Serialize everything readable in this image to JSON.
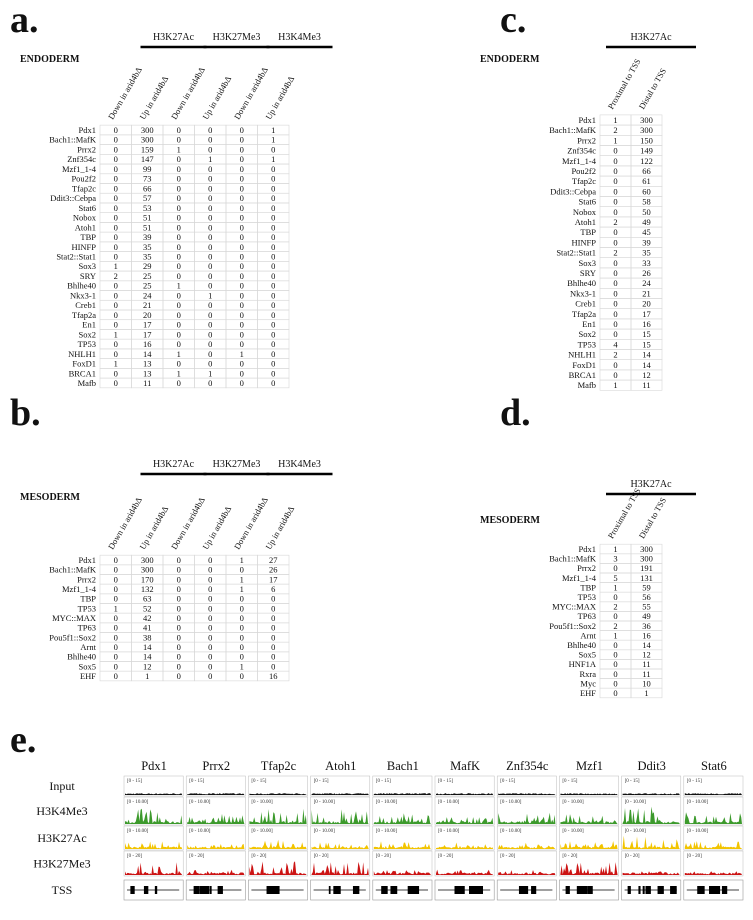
{
  "panels": {
    "a": {
      "label": "a.",
      "section": "ENDODERM",
      "groups": [
        "H3K27Ac",
        "H3K27Me3",
        "H3K4Me3"
      ],
      "columns": [
        "Down in arid4bΔ",
        "Up in arid4bΔ",
        "Down in arid4bΔ",
        "Up in arid4bΔ",
        "Down in arid4bΔ",
        "Up in arid4bΔ"
      ],
      "rows": [
        {
          "name": "Pdx1",
          "cells": [
            0,
            300,
            0,
            0,
            0,
            1
          ]
        },
        {
          "name": "Bach1::MafK",
          "cells": [
            0,
            300,
            0,
            0,
            0,
            1
          ]
        },
        {
          "name": "Prrx2",
          "cells": [
            0,
            159,
            1,
            0,
            0,
            0
          ]
        },
        {
          "name": "Znf354c",
          "cells": [
            0,
            147,
            0,
            1,
            0,
            1
          ]
        },
        {
          "name": "Mzf1_1-4",
          "cells": [
            0,
            99,
            0,
            0,
            0,
            0
          ]
        },
        {
          "name": "Pou2f2",
          "cells": [
            0,
            73,
            0,
            0,
            0,
            0
          ]
        },
        {
          "name": "Tfap2c",
          "cells": [
            0,
            66,
            0,
            0,
            0,
            0
          ]
        },
        {
          "name": "Ddit3::Cebpa",
          "cells": [
            0,
            57,
            0,
            0,
            0,
            0
          ]
        },
        {
          "name": "Stat6",
          "cells": [
            0,
            53,
            0,
            0,
            0,
            0
          ]
        },
        {
          "name": "Nobox",
          "cells": [
            0,
            51,
            0,
            0,
            0,
            0
          ]
        },
        {
          "name": "Atoh1",
          "cells": [
            0,
            51,
            0,
            0,
            0,
            0
          ]
        },
        {
          "name": "TBP",
          "cells": [
            0,
            39,
            0,
            0,
            0,
            0
          ]
        },
        {
          "name": "HINFP",
          "cells": [
            0,
            35,
            0,
            0,
            0,
            0
          ]
        },
        {
          "name": "Stat2::Stat1",
          "cells": [
            0,
            35,
            0,
            0,
            0,
            0
          ]
        },
        {
          "name": "Sox3",
          "cells": [
            1,
            29,
            0,
            0,
            0,
            0
          ]
        },
        {
          "name": "SRY",
          "cells": [
            2,
            25,
            0,
            0,
            0,
            0
          ]
        },
        {
          "name": "Bhlhe40",
          "cells": [
            0,
            25,
            1,
            0,
            0,
            0
          ]
        },
        {
          "name": "Nkx3-1",
          "cells": [
            0,
            24,
            0,
            1,
            0,
            0
          ]
        },
        {
          "name": "Creb1",
          "cells": [
            0,
            21,
            0,
            0,
            0,
            0
          ]
        },
        {
          "name": "Tfap2a",
          "cells": [
            0,
            20,
            0,
            0,
            0,
            0
          ]
        },
        {
          "name": "En1",
          "cells": [
            0,
            17,
            0,
            0,
            0,
            0
          ]
        },
        {
          "name": "Sox2",
          "cells": [
            1,
            17,
            0,
            0,
            0,
            0
          ]
        },
        {
          "name": "TP53",
          "cells": [
            0,
            16,
            0,
            0,
            0,
            0
          ]
        },
        {
          "name": "NHLH1",
          "cells": [
            0,
            14,
            1,
            0,
            1,
            0
          ]
        },
        {
          "name": "FoxD1",
          "cells": [
            1,
            13,
            0,
            0,
            0,
            0
          ]
        },
        {
          "name": "BRCA1",
          "cells": [
            0,
            13,
            1,
            1,
            0,
            0
          ]
        },
        {
          "name": "Mafb",
          "cells": [
            0,
            11,
            0,
            0,
            0,
            0
          ]
        }
      ]
    },
    "b": {
      "label": "b.",
      "section": "MESODERM",
      "groups": [
        "H3K27Ac",
        "H3K27Me3",
        "H3K4Me3"
      ],
      "columns": [
        "Down in arid4bΔ",
        "Up in arid4bΔ",
        "Down in arid4bΔ",
        "Up in arid4bΔ",
        "Down in arid4bΔ",
        "Up in arid4bΔ"
      ],
      "rows": [
        {
          "name": "Pdx1",
          "cells": [
            0,
            300,
            0,
            0,
            1,
            27
          ]
        },
        {
          "name": "Bach1::MafK",
          "cells": [
            0,
            300,
            0,
            0,
            0,
            26
          ]
        },
        {
          "name": "Prrx2",
          "cells": [
            0,
            170,
            0,
            0,
            1,
            17
          ]
        },
        {
          "name": "Mzf1_1-4",
          "cells": [
            0,
            132,
            0,
            0,
            1,
            6
          ]
        },
        {
          "name": "TBP",
          "cells": [
            0,
            63,
            0,
            0,
            0,
            0
          ]
        },
        {
          "name": "TP53",
          "cells": [
            1,
            52,
            0,
            0,
            0,
            0
          ]
        },
        {
          "name": "MYC::MAX",
          "cells": [
            0,
            42,
            0,
            0,
            0,
            0
          ]
        },
        {
          "name": "TP63",
          "cells": [
            0,
            41,
            0,
            0,
            0,
            0
          ]
        },
        {
          "name": "Pou5f1::Sox2",
          "cells": [
            0,
            38,
            0,
            0,
            0,
            0
          ]
        },
        {
          "name": "Arnt",
          "cells": [
            0,
            14,
            0,
            0,
            0,
            0
          ]
        },
        {
          "name": "Bhlhe40",
          "cells": [
            0,
            14,
            0,
            0,
            0,
            0
          ]
        },
        {
          "name": "Sox5",
          "cells": [
            0,
            12,
            0,
            0,
            1,
            0
          ]
        },
        {
          "name": "EHF",
          "cells": [
            0,
            1,
            0,
            0,
            0,
            16
          ]
        }
      ]
    },
    "c": {
      "label": "c.",
      "section": "ENDODERM",
      "groups": [
        "H3K27Ac"
      ],
      "columns": [
        "Proximal to TSS",
        "Distal to TSS"
      ],
      "rows": [
        {
          "name": "Pdx1",
          "cells": [
            1,
            300
          ]
        },
        {
          "name": "Bach1::MafK",
          "cells": [
            2,
            300
          ]
        },
        {
          "name": "Prrx2",
          "cells": [
            1,
            150
          ]
        },
        {
          "name": "Znf354c",
          "cells": [
            0,
            149
          ]
        },
        {
          "name": "Mzf1_1-4",
          "cells": [
            0,
            122
          ]
        },
        {
          "name": "Pou2f2",
          "cells": [
            0,
            66
          ]
        },
        {
          "name": "Tfap2c",
          "cells": [
            0,
            61
          ]
        },
        {
          "name": "Ddit3::Cebpa",
          "cells": [
            0,
            60
          ]
        },
        {
          "name": "Stat6",
          "cells": [
            0,
            58
          ]
        },
        {
          "name": "Nobox",
          "cells": [
            0,
            50
          ]
        },
        {
          "name": "Atoh1",
          "cells": [
            2,
            49
          ]
        },
        {
          "name": "TBP",
          "cells": [
            0,
            45
          ]
        },
        {
          "name": "HINFP",
          "cells": [
            0,
            39
          ]
        },
        {
          "name": "Stat2::Stat1",
          "cells": [
            2,
            35
          ]
        },
        {
          "name": "Sox3",
          "cells": [
            0,
            33
          ]
        },
        {
          "name": "SRY",
          "cells": [
            0,
            26
          ]
        },
        {
          "name": "Bhlhe40",
          "cells": [
            0,
            24
          ]
        },
        {
          "name": "Nkx3-1",
          "cells": [
            0,
            21
          ]
        },
        {
          "name": "Creb1",
          "cells": [
            0,
            20
          ]
        },
        {
          "name": "Tfap2a",
          "cells": [
            0,
            17
          ]
        },
        {
          "name": "En1",
          "cells": [
            0,
            16
          ]
        },
        {
          "name": "Sox2",
          "cells": [
            0,
            15
          ]
        },
        {
          "name": "TP53",
          "cells": [
            4,
            15
          ]
        },
        {
          "name": "NHLH1",
          "cells": [
            2,
            14
          ]
        },
        {
          "name": "FoxD1",
          "cells": [
            0,
            14
          ]
        },
        {
          "name": "BRCA1",
          "cells": [
            0,
            12
          ]
        },
        {
          "name": "Mafb",
          "cells": [
            1,
            11
          ]
        }
      ]
    },
    "d": {
      "label": "d.",
      "section": "MESODERM",
      "groups": [
        "H3K27Ac"
      ],
      "columns": [
        "Proximal to TSS",
        "Distal to TSS"
      ],
      "rows": [
        {
          "name": "Pdx1",
          "cells": [
            1,
            300
          ]
        },
        {
          "name": "Bach1::MafK",
          "cells": [
            3,
            300
          ]
        },
        {
          "name": "Prrx2",
          "cells": [
            0,
            191
          ]
        },
        {
          "name": "Mzf1_1-4",
          "cells": [
            5,
            131
          ]
        },
        {
          "name": "TBP",
          "cells": [
            1,
            59
          ]
        },
        {
          "name": "TP53",
          "cells": [
            0,
            56
          ]
        },
        {
          "name": "MYC::MAX",
          "cells": [
            2,
            55
          ]
        },
        {
          "name": "TP63",
          "cells": [
            0,
            49
          ]
        },
        {
          "name": "Pou5f1::Sox2",
          "cells": [
            2,
            36
          ]
        },
        {
          "name": "Arnt",
          "cells": [
            1,
            16
          ]
        },
        {
          "name": "Bhlhe40",
          "cells": [
            0,
            14
          ]
        },
        {
          "name": "Sox5",
          "cells": [
            0,
            12
          ]
        },
        {
          "name": "HNF1A",
          "cells": [
            0,
            11
          ]
        },
        {
          "name": "Rxra",
          "cells": [
            0,
            11
          ]
        },
        {
          "name": "Myc",
          "cells": [
            0,
            10
          ]
        },
        {
          "name": "EHF",
          "cells": [
            0,
            1
          ]
        }
      ]
    },
    "e": {
      "label": "e.",
      "genes": [
        "Pdx1",
        "Prrx2",
        "Tfap2c",
        "Atoh1",
        "Bach1",
        "MafK",
        "Znf354c",
        "Mzf1",
        "Ddit3",
        "Stat6"
      ],
      "tracks": [
        {
          "name": "Input",
          "range": "[0 - 15]"
        },
        {
          "name": "H3K4Me3",
          "range": "[0 - 10.00]"
        },
        {
          "name": "H3K27Ac",
          "range": "[0 - 10.00]"
        },
        {
          "name": "H3K27Me3",
          "range": "[0 - 20]"
        }
      ],
      "tss": "TSS"
    }
  }
}
